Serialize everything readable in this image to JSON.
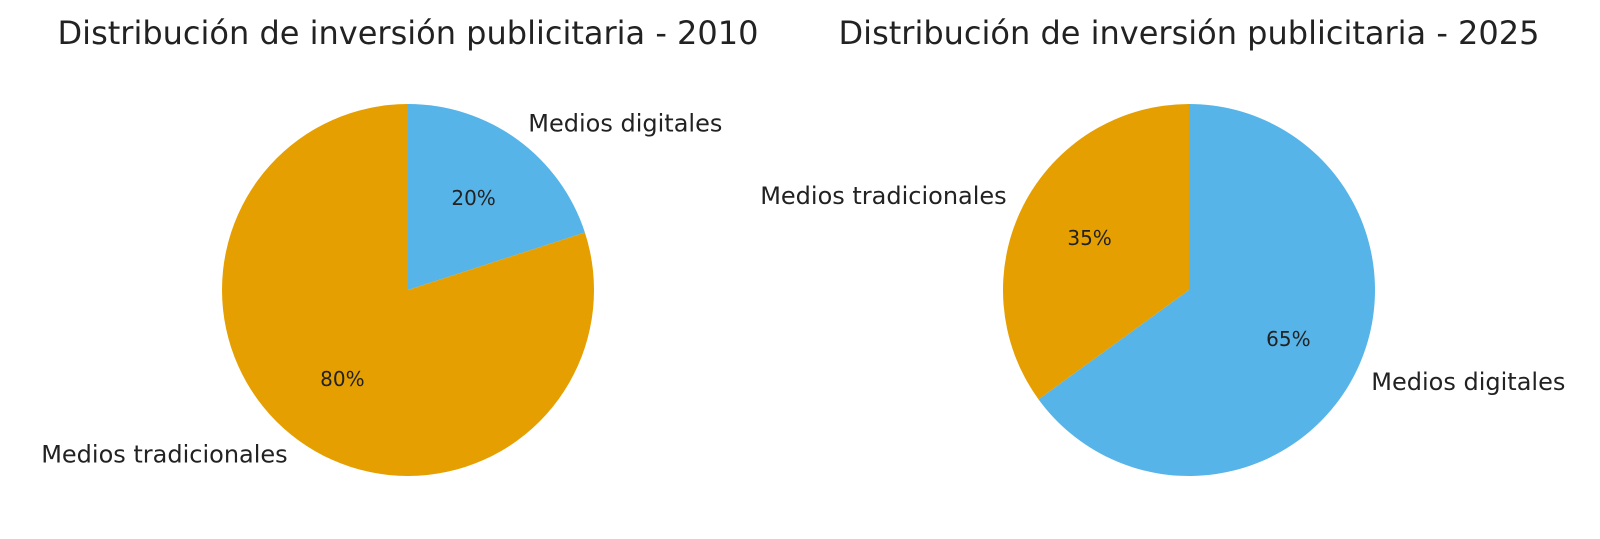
{
  "chart_data": [
    {
      "type": "pie",
      "title": "Distribución de inversión publicitaria - 2010",
      "start_angle_deg": 90,
      "direction": "clockwise",
      "slices": [
        {
          "label": "Medios digitales",
          "value": 20,
          "pct_label": "20%",
          "color": "#56B4E9"
        },
        {
          "label": "Medios tradicionales",
          "value": 80,
          "pct_label": "80%",
          "color": "#E69F00"
        }
      ]
    },
    {
      "type": "pie",
      "title": "Distribución de inversión publicitaria - 2025",
      "start_angle_deg": 90,
      "direction": "clockwise",
      "slices": [
        {
          "label": "Medios digitales",
          "value": 65,
          "pct_label": "65%",
          "color": "#56B4E9"
        },
        {
          "label": "Medios tradicionales",
          "value": 35,
          "pct_label": "35%",
          "color": "#E69F00"
        }
      ]
    }
  ]
}
